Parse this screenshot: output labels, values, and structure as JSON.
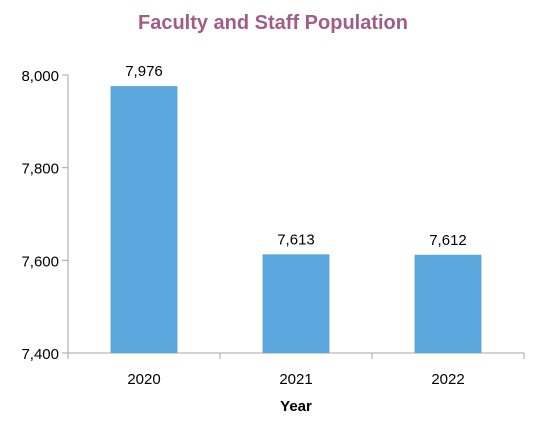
{
  "chart_data": {
    "type": "bar",
    "title": "Faculty and Staff Population",
    "xlabel": "Year",
    "ylabel": "",
    "categories": [
      "2020",
      "2021",
      "2022"
    ],
    "values": [
      7976,
      7613,
      7612
    ],
    "data_labels": [
      "7,976",
      "7,613",
      "7,612"
    ],
    "ylim": [
      7400,
      8000
    ],
    "yticks": [
      7400,
      7600,
      7800,
      8000
    ],
    "ytick_labels": [
      "7,400",
      "7,600",
      "7,800",
      "8,000"
    ],
    "grid": false,
    "legend": "none",
    "colors": {
      "bar": "#5BA7DD",
      "title": "#A25C88",
      "axis": "#A6A6A6",
      "text": "#000000"
    }
  }
}
